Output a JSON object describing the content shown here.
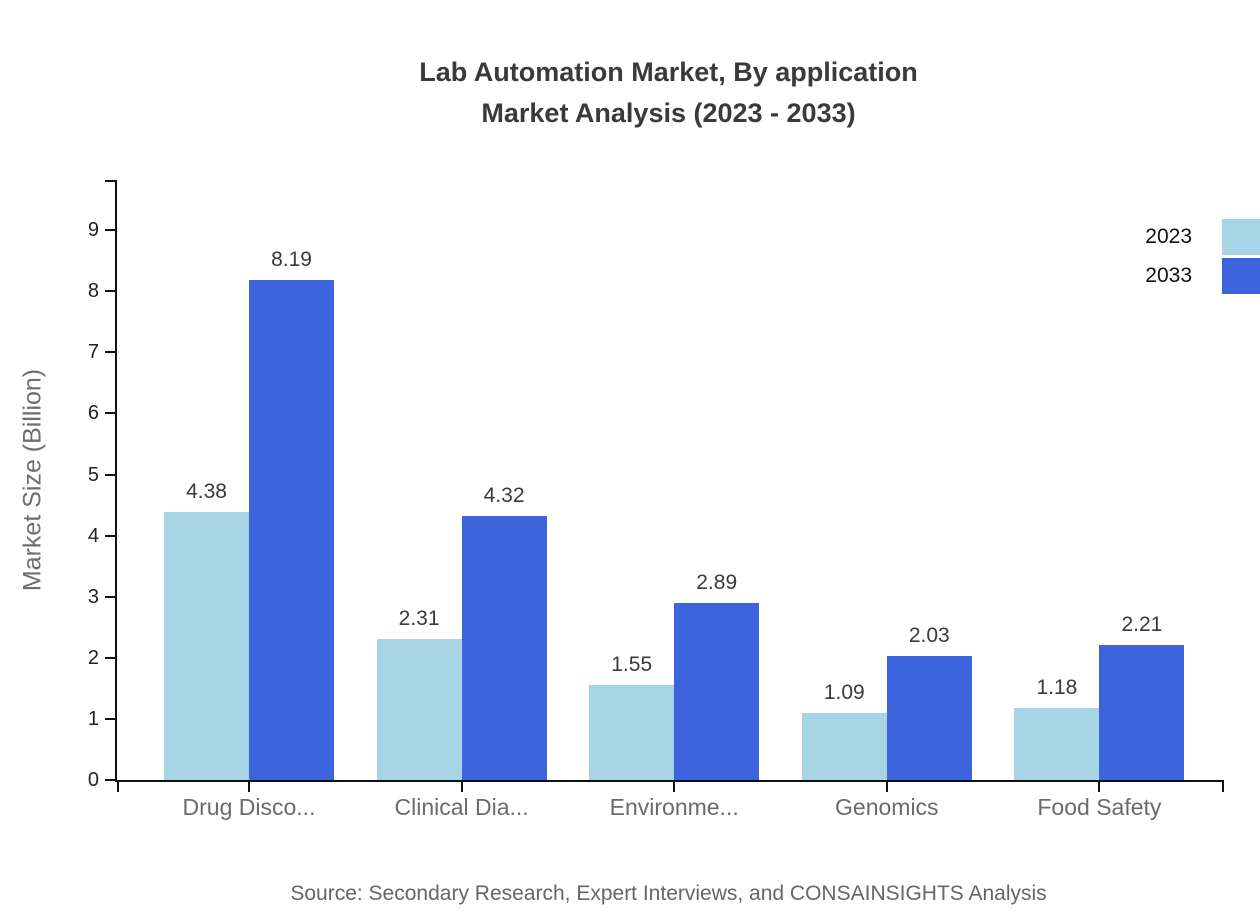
{
  "title": {
    "line1": "Lab Automation Market, By application",
    "line2": "Market Analysis (2023 - 2033)"
  },
  "source": "Source: Secondary Research, Expert Interviews, and CONSAINSIGHTS Analysis",
  "chart_data": {
    "type": "bar",
    "title": "Lab Automation Market, By application Market Analysis (2023 - 2033)",
    "categories": [
      "Drug Disco...",
      "Clinical Dia...",
      "Environme...",
      "Genomics",
      "Food Safety"
    ],
    "series": [
      {
        "name": "2023",
        "color": "#A8D5E6",
        "values": [
          4.38,
          2.31,
          1.55,
          1.09,
          1.18
        ]
      },
      {
        "name": "2033",
        "color": "#3D64DC",
        "values": [
          8.19,
          4.32,
          2.89,
          2.03,
          2.21
        ]
      }
    ],
    "xlabel": "",
    "ylabel": "Market Size (Billion)",
    "yticks": [
      0,
      1,
      2,
      3,
      4,
      5,
      6,
      7,
      8,
      9
    ],
    "ylim": [
      0,
      9.82
    ],
    "grid": false,
    "legend_position": "top-right",
    "value_labels": true,
    "axis_color": "#111111",
    "label_color": "#3a3a3a"
  }
}
